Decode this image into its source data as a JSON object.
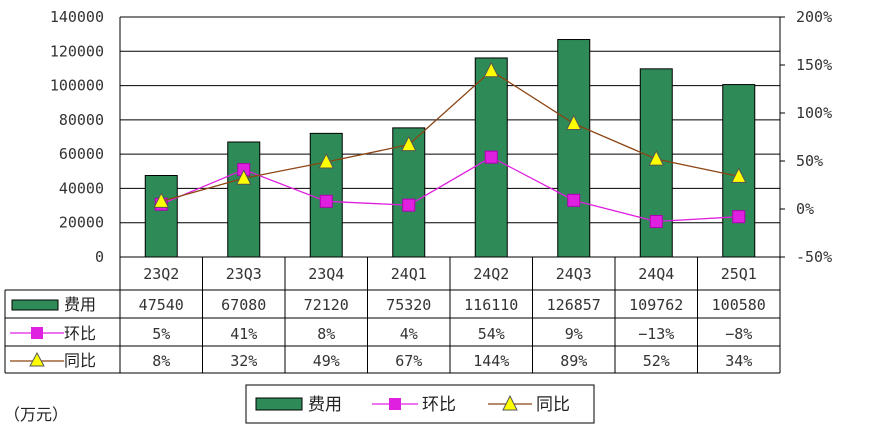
{
  "unit_label": "（万元）",
  "chart_data": {
    "type": "bar",
    "categories": [
      "23Q2",
      "23Q3",
      "23Q4",
      "24Q1",
      "24Q2",
      "24Q3",
      "24Q4",
      "25Q1"
    ],
    "series": [
      {
        "name": "费用",
        "kind": "bar",
        "axis": "left",
        "color": "#2E8B57",
        "values": [
          47540,
          67080,
          72120,
          75320,
          116110,
          126857,
          109762,
          100580
        ]
      },
      {
        "name": "环比",
        "kind": "line",
        "axis": "right",
        "color": "#E020E0",
        "marker": "square",
        "values": [
          5,
          41,
          8,
          4,
          54,
          9,
          -13,
          -8
        ],
        "labels": [
          "5%",
          "41%",
          "8%",
          "4%",
          "54%",
          "9%",
          "−13%",
          "−8%"
        ]
      },
      {
        "name": "同比",
        "kind": "line",
        "axis": "right",
        "color": "#8B4513",
        "marker": "triangle",
        "marker_color": "#FFFF00",
        "values": [
          8,
          32,
          49,
          67,
          144,
          89,
          52,
          34
        ],
        "labels": [
          "8%",
          "32%",
          "49%",
          "67%",
          "144%",
          "89%",
          "52%",
          "34%"
        ]
      }
    ],
    "left_axis": {
      "min": 0,
      "max": 140000,
      "ticks": [
        "0",
        "20000",
        "40000",
        "60000",
        "80000",
        "100000",
        "120000",
        "140000"
      ]
    },
    "right_axis": {
      "min": -50,
      "max": 200,
      "ticks": [
        "-50%",
        "0%",
        "50%",
        "100%",
        "150%",
        "200%"
      ]
    },
    "grid": true,
    "legend": "bottom"
  }
}
